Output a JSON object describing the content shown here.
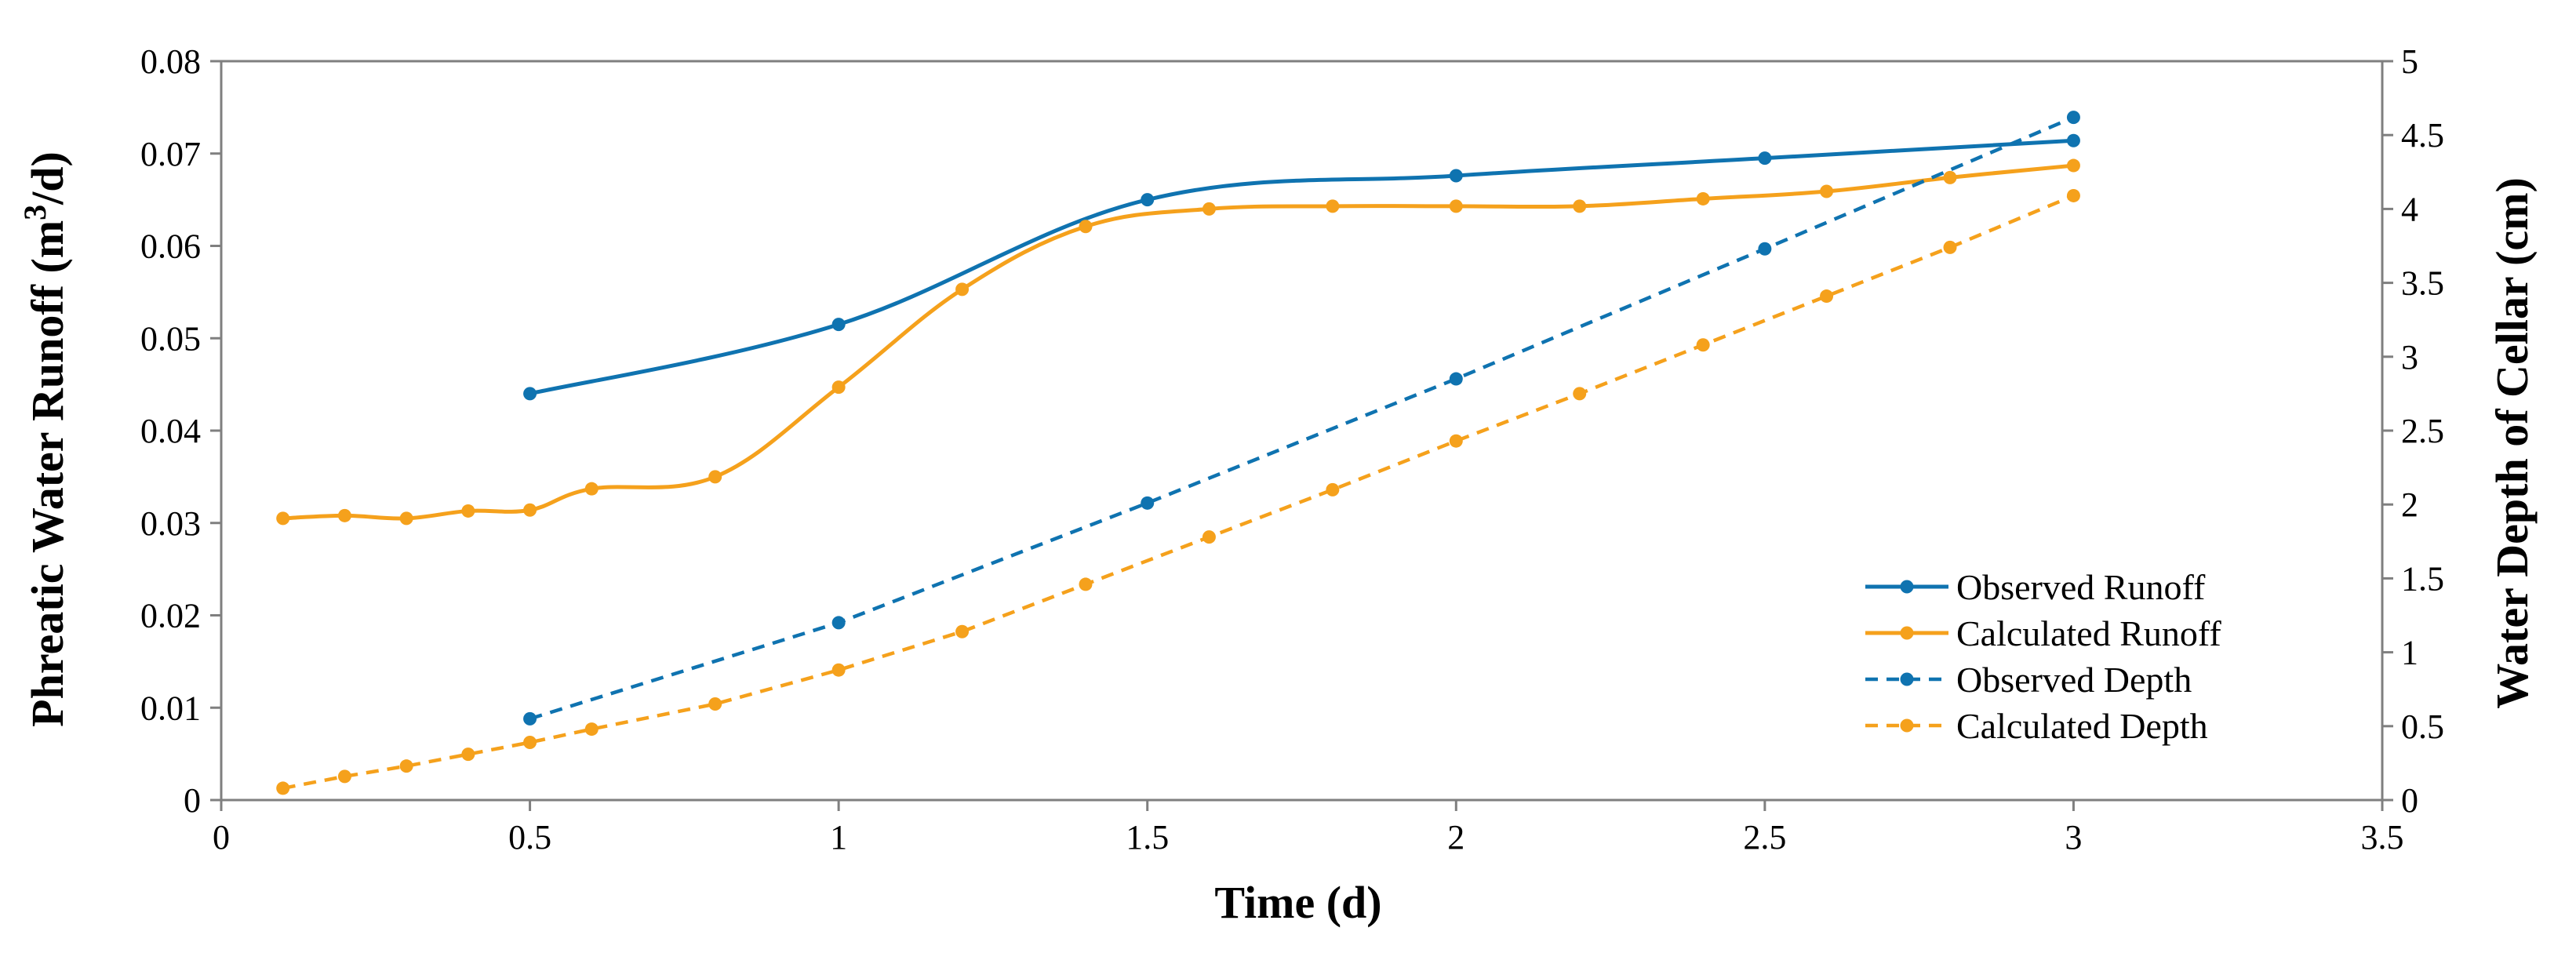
{
  "chart_data": {
    "type": "line",
    "title": "",
    "xlabel": "Time (d)",
    "ylabel_left_main": "Phreatic Water Runoff  (m",
    "ylabel_left_sup": "3",
    "ylabel_left_end": "/d)",
    "ylabel_right": "Water Depth of Cellar (cm)",
    "xlim": [
      0,
      3.5
    ],
    "ylim_left": [
      0,
      0.08
    ],
    "ylim_right": [
      0,
      5
    ],
    "x_ticks": [
      0,
      0.5,
      1,
      1.5,
      2,
      2.5,
      3,
      3.5
    ],
    "x_tick_labels": [
      "0",
      "0.5",
      "1",
      "1.5",
      "2",
      "2.5",
      "3",
      "3.5"
    ],
    "y_left_ticks": [
      0,
      0.01,
      0.02,
      0.03,
      0.04,
      0.05,
      0.06,
      0.07,
      0.08
    ],
    "y_left_tick_labels": [
      "0",
      "0.01",
      "0.02",
      "0.03",
      "0.04",
      "0.05",
      "0.06",
      "0.07",
      "0.08"
    ],
    "y_right_ticks": [
      0,
      0.5,
      1,
      1.5,
      2,
      2.5,
      3,
      3.5,
      4,
      4.5,
      5
    ],
    "y_right_tick_labels": [
      "0",
      "0.5",
      "1",
      "1.5",
      "2",
      "2.5",
      "3",
      "3.5",
      "4",
      "4.5",
      "5"
    ],
    "legend_position": "bottom-right",
    "series": [
      {
        "name": "Observed Runoff",
        "axis": "left",
        "style": "solid",
        "color": "#0f73b0",
        "x": [
          0.5,
          1,
          1.5,
          2,
          2.5,
          3
        ],
        "values": [
          0.044,
          0.0515,
          0.065,
          0.0676,
          0.0695,
          0.0714
        ]
      },
      {
        "name": "Calculated Runoff",
        "axis": "left",
        "style": "solid",
        "color": "#f5a11c",
        "x": [
          0.1,
          0.2,
          0.3,
          0.4,
          0.5,
          0.6,
          0.8,
          1,
          1.2,
          1.4,
          1.6,
          1.8,
          2,
          2.2,
          2.4,
          2.6,
          2.8,
          3
        ],
        "values": [
          0.0305,
          0.0308,
          0.0305,
          0.0313,
          0.0314,
          0.0337,
          0.035,
          0.0447,
          0.0553,
          0.0621,
          0.064,
          0.0643,
          0.0643,
          0.0643,
          0.0651,
          0.0659,
          0.0674,
          0.0687
        ]
      },
      {
        "name": "Observed Depth",
        "axis": "right",
        "style": "dashed",
        "color": "#0f73b0",
        "x": [
          0.5,
          1,
          1.5,
          2,
          2.5,
          3
        ],
        "values": [
          0.55,
          1.2,
          2.01,
          2.85,
          3.73,
          4.62
        ]
      },
      {
        "name": "Calculated Depth",
        "axis": "right",
        "style": "dashed",
        "color": "#f5a11c",
        "x": [
          0.1,
          0.2,
          0.3,
          0.4,
          0.5,
          0.6,
          0.8,
          1,
          1.2,
          1.4,
          1.6,
          1.8,
          2,
          2.2,
          2.4,
          2.6,
          2.8,
          3
        ],
        "values": [
          0.08,
          0.16,
          0.23,
          0.31,
          0.39,
          0.48,
          0.65,
          0.88,
          1.14,
          1.46,
          1.78,
          2.1,
          2.43,
          2.75,
          3.08,
          3.41,
          3.74,
          4.09
        ]
      }
    ]
  }
}
